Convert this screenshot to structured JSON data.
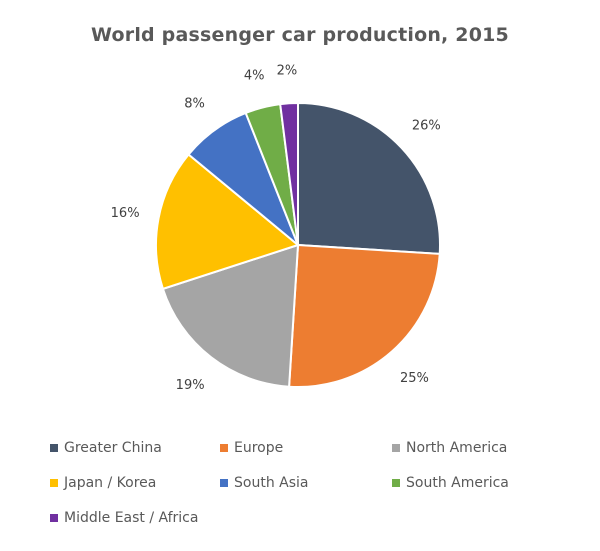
{
  "chart_data": {
    "type": "pie",
    "title": "World passenger car production, 2015",
    "categories": [
      "Greater China",
      "Europe",
      "North America",
      "Japan / Korea",
      "South Asia",
      "South America",
      "Middle East / Africa"
    ],
    "values": [
      26,
      25,
      19,
      16,
      8,
      4,
      2
    ],
    "data_labels": [
      "26%",
      "25%",
      "19%",
      "16%",
      "8%",
      "4%",
      "2%"
    ],
    "colors": [
      "#44546A",
      "#ED7D31",
      "#A5A5A5",
      "#FFC000",
      "#4472C4",
      "#70AD47",
      "#7030A0"
    ],
    "start_angle_deg": 0,
    "direction": "clockwise",
    "legend_position": "bottom"
  }
}
